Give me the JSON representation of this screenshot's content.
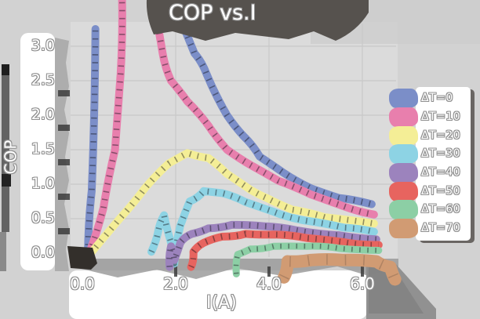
{
  "title": "COP vs.I",
  "axes": {
    "x_label": "I(A)",
    "y_label": "COP",
    "x_ticks": [
      "0.0",
      "2.0",
      "4.0",
      "6.0"
    ],
    "y_ticks": [
      "3.0",
      "2.5",
      "2.0",
      "1.5",
      "1.0",
      "0.5",
      "0.0"
    ]
  },
  "legend": {
    "items": [
      {
        "label": "ΔT=0"
      },
      {
        "label": "ΔT=10"
      },
      {
        "label": "ΔT=20"
      },
      {
        "label": "ΔT=30"
      },
      {
        "label": "ΔT=40"
      },
      {
        "label": "ΔT=50"
      },
      {
        "label": "ΔT=60"
      },
      {
        "label": "ΔT=70"
      }
    ]
  },
  "chart_data": {
    "type": "line",
    "title": "COP vs.I",
    "xlabel": "I(A)",
    "ylabel": "COP",
    "xlim": [
      0,
      6.8
    ],
    "ylim": [
      0,
      3.0
    ],
    "x_tick_values": [
      0,
      2,
      4,
      6
    ],
    "y_tick_values": [
      0,
      0.5,
      1.0,
      1.5,
      2.0,
      2.5,
      3.0
    ],
    "grid": true,
    "legend_position": "right",
    "style": "hand-drawn thick bands with black hatch ticks; COP values of 3.25+ mean the curve exits the top of the axes",
    "series": [
      {
        "name": "ΔT=0",
        "color": "#7b8ec8",
        "width": 10,
        "segments": [
          [
            [
              0.12,
              0
            ],
            [
              0.2,
              0.9
            ],
            [
              0.28,
              3.25
            ]
          ],
          [
            [
              2.13,
              3.35
            ],
            [
              2.4,
              2.9
            ],
            [
              2.66,
              2.6
            ],
            [
              3.1,
              2.0
            ],
            [
              3.45,
              1.7
            ],
            [
              3.8,
              1.4
            ],
            [
              4.3,
              1.17
            ],
            [
              4.9,
              0.94
            ],
            [
              5.5,
              0.8
            ],
            [
              6.2,
              0.71
            ]
          ]
        ]
      },
      {
        "name": "ΔT=10",
        "color": "#e87fad",
        "width": 10,
        "segments": [
          [
            [
              0.15,
              0
            ],
            [
              0.45,
              0.65
            ],
            [
              0.7,
              1.5
            ],
            [
              0.82,
              2.6
            ],
            [
              0.85,
              3.7
            ]
          ],
          [
            [
              1.58,
              3.42
            ],
            [
              1.72,
              2.9
            ],
            [
              1.9,
              2.5
            ],
            [
              2.25,
              2.2
            ],
            [
              2.7,
              1.85
            ],
            [
              3.1,
              1.5
            ],
            [
              3.6,
              1.28
            ],
            [
              4.2,
              1.05
            ],
            [
              4.9,
              0.85
            ],
            [
              5.6,
              0.68
            ],
            [
              6.25,
              0.56
            ]
          ]
        ]
      },
      {
        "name": "ΔT=20",
        "color": "#f4ee96",
        "width": 10,
        "segments": [
          [
            [
              0.18,
              0
            ],
            [
              0.8,
              0.5
            ],
            [
              1.35,
              0.95
            ],
            [
              1.85,
              1.3
            ],
            [
              2.25,
              1.45
            ],
            [
              2.7,
              1.38
            ],
            [
              3.1,
              1.15
            ],
            [
              3.6,
              0.92
            ],
            [
              3.95,
              0.8
            ],
            [
              4.5,
              0.63
            ],
            [
              5.2,
              0.52
            ],
            [
              6.25,
              0.43
            ]
          ]
        ]
      },
      {
        "name": "ΔT=30",
        "color": "#8dd3e4",
        "width": 10,
        "segments": [
          [
            [
              1.48,
              0.02
            ],
            [
              1.62,
              0.3
            ],
            [
              1.75,
              0.55
            ],
            [
              1.88,
              0.2
            ],
            [
              1.97,
              -0.15
            ],
            [
              2.1,
              0.4
            ],
            [
              2.3,
              0.75
            ],
            [
              2.6,
              0.9
            ],
            [
              3.0,
              0.87
            ],
            [
              3.5,
              0.74
            ],
            [
              4.1,
              0.6
            ],
            [
              4.8,
              0.47
            ],
            [
              5.6,
              0.37
            ],
            [
              6.25,
              0.31
            ]
          ]
        ]
      },
      {
        "name": "ΔT=40",
        "color": "#9c83bd",
        "width": 10,
        "segments": [
          [
            [
              1.87,
              -0.2
            ],
            [
              1.9,
              0.1
            ],
            [
              1.97,
              -0.1
            ],
            [
              2.1,
              0.15
            ],
            [
              2.35,
              0.28
            ],
            [
              2.7,
              0.36
            ],
            [
              3.2,
              0.41
            ],
            [
              3.9,
              0.39
            ],
            [
              4.6,
              0.33
            ],
            [
              5.5,
              0.26
            ],
            [
              6.3,
              0.2
            ]
          ]
        ]
      },
      {
        "name": "ΔT=50",
        "color": "#e7645f",
        "width": 10,
        "segments": [
          [
            [
              2.33,
              -0.2
            ],
            [
              2.38,
              0.02
            ],
            [
              2.6,
              0.15
            ],
            [
              3.0,
              0.24
            ],
            [
              3.5,
              0.28
            ],
            [
              4.1,
              0.27
            ],
            [
              4.8,
              0.22
            ],
            [
              5.6,
              0.16
            ],
            [
              6.35,
              0.12
            ]
          ]
        ]
      },
      {
        "name": "ΔT=60",
        "color": "#8ccfa5",
        "width": 9,
        "segments": [
          [
            [
              3.3,
              -0.3
            ],
            [
              3.33,
              -0.02
            ],
            [
              3.6,
              0.06
            ],
            [
              4.1,
              0.1
            ],
            [
              4.8,
              0.1
            ],
            [
              5.5,
              0.07
            ],
            [
              6.35,
              0.04
            ]
          ]
        ]
      },
      {
        "name": "ΔT=70",
        "color": "#d19b73",
        "width": 16,
        "hatch": "1.5 22",
        "hatch_opacity": 0.18,
        "segments": [
          [
            [
              4.32,
              -0.35
            ],
            [
              4.4,
              -0.12
            ],
            [
              4.9,
              -0.1
            ],
            [
              5.6,
              -0.1
            ],
            [
              6.3,
              -0.12
            ],
            [
              6.6,
              -0.2
            ],
            [
              6.7,
              -0.38
            ]
          ]
        ]
      }
    ]
  }
}
